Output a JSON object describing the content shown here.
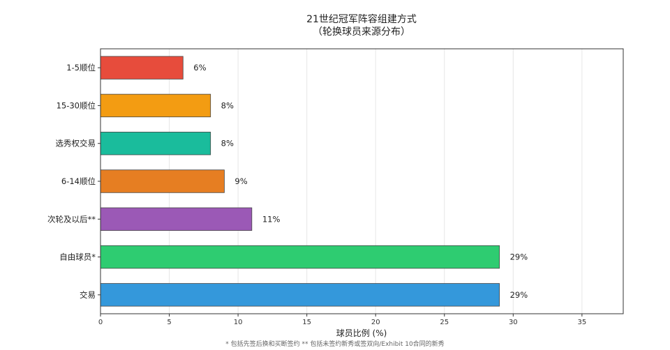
{
  "chart_data": {
    "type": "bar",
    "orientation": "horizontal",
    "title_line1": "21世纪冠军阵容组建方式",
    "title_line2": "（轮换球员来源分布）",
    "xlabel": "球员比例 (%)",
    "ylabel": "",
    "xlim": [
      0,
      38
    ],
    "xticks": [
      0,
      5,
      10,
      15,
      20,
      25,
      30,
      35
    ],
    "grid": true,
    "categories": [
      "1-5顺位",
      "15-30顺位",
      "选秀权交易",
      "6-14顺位",
      "次轮及以后**",
      "自由球员*",
      "交易"
    ],
    "values": [
      6,
      8,
      8,
      9,
      11,
      29,
      29
    ],
    "value_labels": [
      "6%",
      "8%",
      "8%",
      "9%",
      "11%",
      "29%",
      "29%"
    ],
    "colors": [
      "#e74c3c",
      "#f39c12",
      "#1abc9c",
      "#e67e22",
      "#9b59b6",
      "#2ecc71",
      "#3498db"
    ]
  },
  "footnote": "* 包括先签后换和买断签约    ** 包括未签约新秀或签双向/Exhibit 10合同的新秀"
}
